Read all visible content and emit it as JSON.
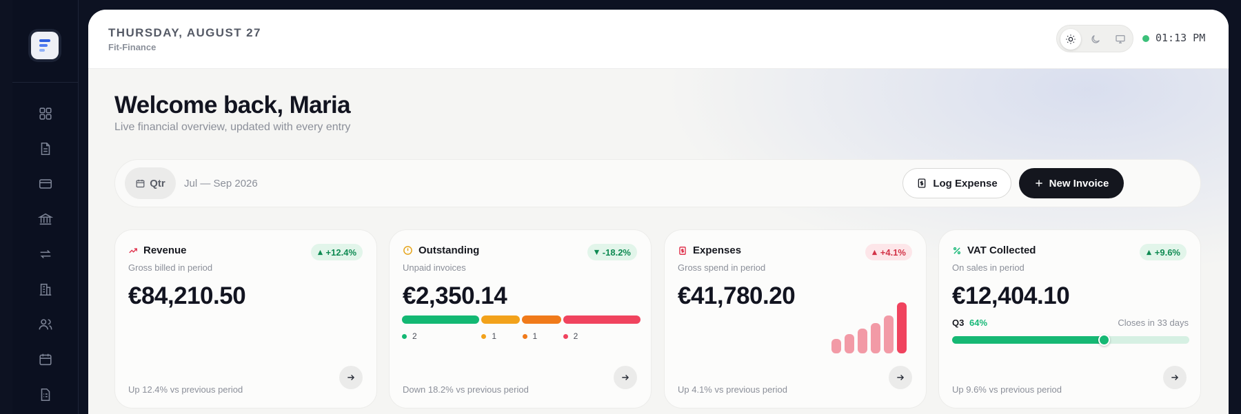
{
  "sidebar": {
    "logo_icon": "stacked-lines-logo-icon",
    "items": [
      {
        "name": "dashboard",
        "icon": "grid-icon"
      },
      {
        "name": "documents",
        "icon": "document-icon"
      },
      {
        "name": "cards",
        "icon": "credit-card-icon"
      },
      {
        "name": "banking",
        "icon": "bank-icon"
      },
      {
        "name": "transfers",
        "icon": "transfer-icon"
      },
      {
        "name": "companies",
        "icon": "building-icon"
      },
      {
        "name": "contacts",
        "icon": "users-icon"
      },
      {
        "name": "calendar",
        "icon": "calendar-icon"
      },
      {
        "name": "reports",
        "icon": "report-icon"
      }
    ]
  },
  "header": {
    "date": "THURSDAY, AUGUST 27",
    "app_name": "Fit-Finance",
    "theme_options": [
      "light",
      "dark",
      "system"
    ],
    "active_theme": "light",
    "clock": "01:13 PM",
    "status_color": "#3cc07a"
  },
  "welcome": {
    "title": "Welcome back, Maria",
    "subtitle": "Live financial overview, updated with every entry"
  },
  "filter": {
    "period": "Qtr",
    "range": "Jul — Sep 2026",
    "log_expense_label": "Log Expense",
    "new_invoice_label": "New Invoice"
  },
  "cards": {
    "revenue": {
      "title": "Revenue",
      "subtitle": "Gross billed in period",
      "amount": "€84,210.50",
      "badge": "+12.4%",
      "trend": "up",
      "footer": "Up 12.4% vs previous period"
    },
    "outstanding": {
      "title": "Outstanding",
      "subtitle": "Unpaid invoices",
      "amount": "€2,350.14",
      "badge": "-18.2%",
      "trend": "down",
      "footer": "Down 18.2% vs previous period",
      "segments": [
        {
          "count": "2",
          "color": "#13b873"
        },
        {
          "count": "1",
          "color": "#f2a21b"
        },
        {
          "count": "1",
          "color": "#f07a1a"
        },
        {
          "count": "2",
          "color": "#f0435e"
        }
      ]
    },
    "expenses": {
      "title": "Expenses",
      "subtitle": "Gross spend in period",
      "amount": "€41,780.20",
      "badge": "+4.1%",
      "trend": "up",
      "footer": "Up 4.1% vs previous period",
      "bar_levels": [
        0.28,
        0.38,
        0.48,
        0.6,
        0.74,
        1.0
      ]
    },
    "vat": {
      "title": "VAT Collected",
      "subtitle": "On sales in period",
      "amount": "€12,404.10",
      "badge": "+9.6%",
      "trend": "up",
      "footer": "Up 9.6% vs previous period",
      "quarter": "Q3",
      "progress_label": "64%",
      "progress": 0.64,
      "closes": "Closes in 33 days"
    }
  }
}
